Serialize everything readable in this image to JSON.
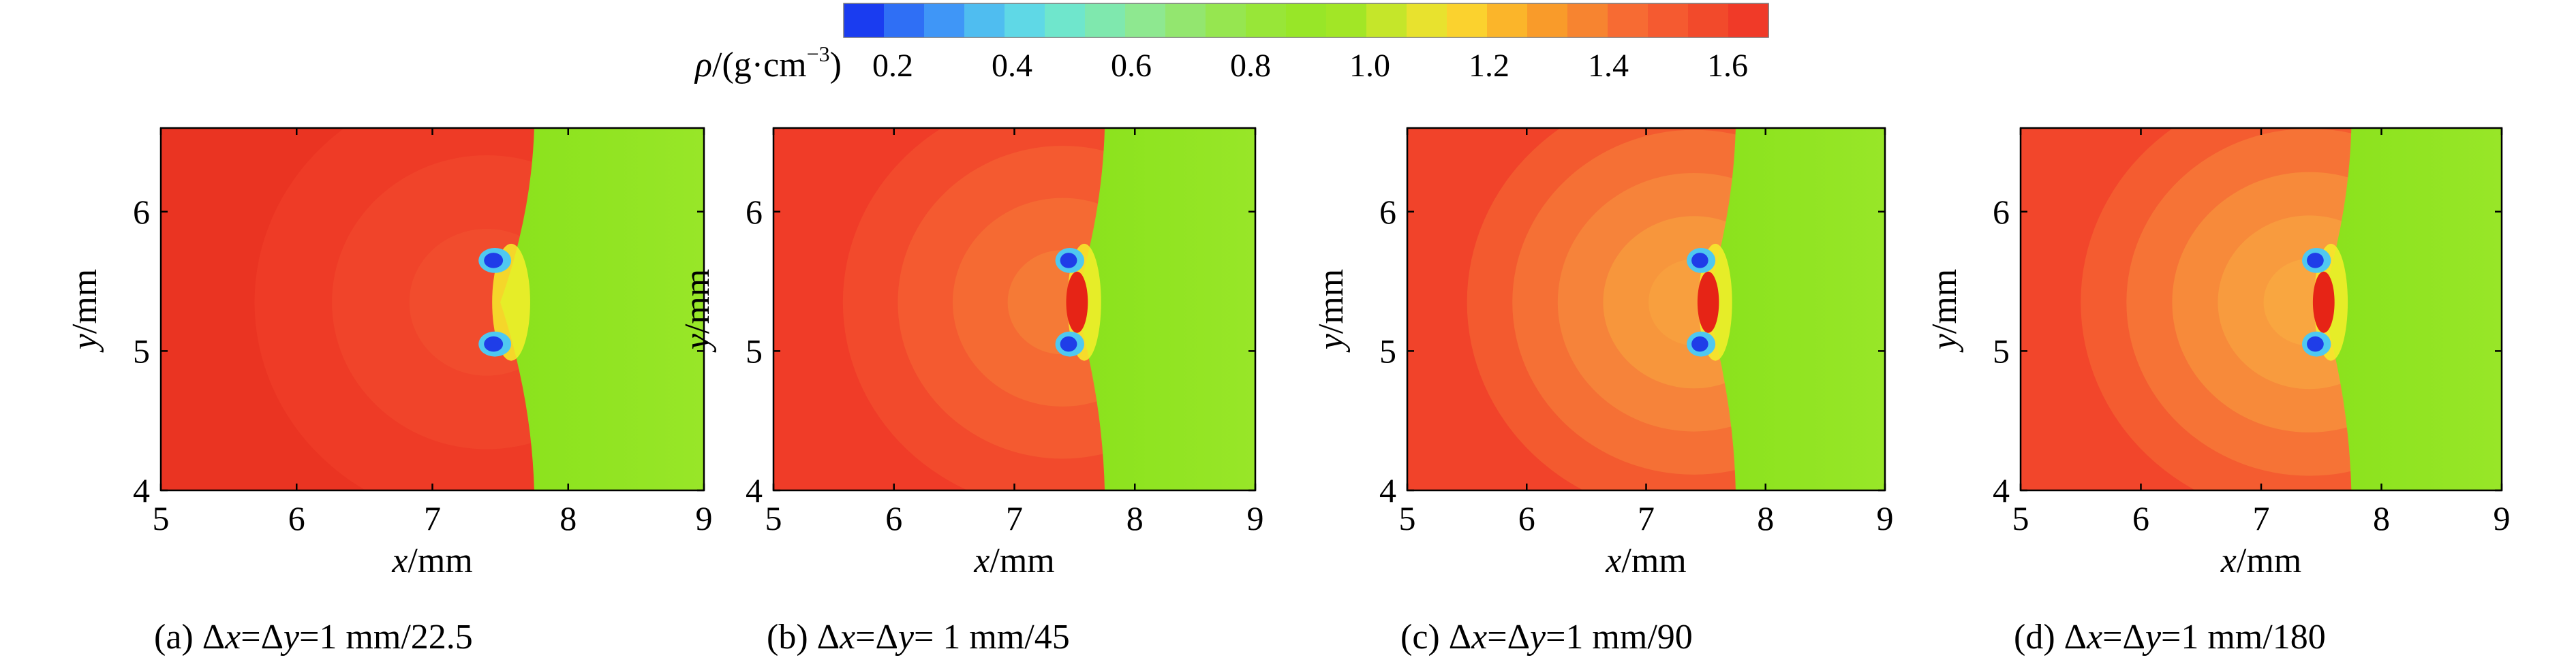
{
  "colorbar": {
    "label_symbol": "ρ",
    "label_units": "/(g·cm",
    "label_exp": "−3",
    "label_close": ")",
    "ticks": [
      "0.2",
      "0.4",
      "0.6",
      "0.8",
      "1.0",
      "1.2",
      "1.4",
      "1.6"
    ],
    "colors": [
      "#1a3cf0",
      "#2f6ff5",
      "#3f96f7",
      "#4fbdf0",
      "#5fd8e6",
      "#6fe6cc",
      "#7fe8ae",
      "#8ee890",
      "#93e66f",
      "#96e650",
      "#98e638",
      "#98e628",
      "#a2e626",
      "#c5e62a",
      "#e8e22e",
      "#fbd22e",
      "#fbb52a",
      "#f99b2a",
      "#f78430",
      "#f76b33",
      "#f55a30",
      "#f24a2b",
      "#f03a28"
    ]
  },
  "chart_data": [
    {
      "type": "heatmap",
      "panel_label": "(a) Δx=Δy=1 mm/22.5",
      "xlabel": "x/mm",
      "ylabel": "y/mm",
      "xlim": [
        5,
        9
      ],
      "ylim": [
        4,
        6.6
      ],
      "xticks": [
        "5",
        "6",
        "7",
        "8",
        "9"
      ],
      "yticks": [
        "4",
        "5",
        "6"
      ],
      "shock_x": 7.75,
      "bubble_center": [
        7.4,
        5.35
      ]
    },
    {
      "type": "heatmap",
      "panel_label": "(b) Δx=Δy= 1 mm/45",
      "xlabel": "x/mm",
      "ylabel": "y/mm",
      "xlim": [
        5,
        9
      ],
      "ylim": [
        4,
        6.6
      ],
      "xticks": [
        "5",
        "6",
        "7",
        "8",
        "9"
      ],
      "yticks": [
        "4",
        "5",
        "6"
      ],
      "shock_x": 7.75,
      "bubble_center": [
        7.4,
        5.35
      ]
    },
    {
      "type": "heatmap",
      "panel_label": "(c) Δx=Δy=1 mm/90",
      "xlabel": "x/mm",
      "ylabel": "y/mm",
      "xlim": [
        5,
        9
      ],
      "ylim": [
        4,
        6.6
      ],
      "xticks": [
        "5",
        "6",
        "7",
        "8",
        "9"
      ],
      "yticks": [
        "4",
        "5",
        "6"
      ],
      "shock_x": 7.75,
      "bubble_center": [
        7.4,
        5.35
      ]
    },
    {
      "type": "heatmap",
      "panel_label": "(d) Δx=Δy=1 mm/180",
      "xlabel": "x/mm",
      "ylabel": "y/mm",
      "xlim": [
        5,
        9
      ],
      "ylim": [
        4,
        6.6
      ],
      "xticks": [
        "5",
        "6",
        "7",
        "8",
        "9"
      ],
      "yticks": [
        "4",
        "5",
        "6"
      ],
      "shock_x": 7.75,
      "bubble_center": [
        7.4,
        5.35
      ]
    }
  ]
}
